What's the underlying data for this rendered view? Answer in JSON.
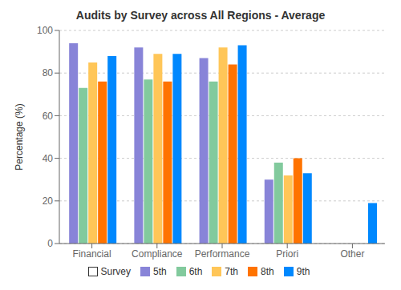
{
  "chart_data": {
    "type": "bar",
    "title": "Audits by Survey across All Regions - Average",
    "categories": [
      "Financial",
      "Compliance",
      "Performance",
      "Priori",
      "Other"
    ],
    "ylabel": "Percentage (%)",
    "ylim": [
      0,
      100
    ],
    "yticks": [
      0,
      20,
      40,
      60,
      80,
      100
    ],
    "grid": true,
    "legend": "bottom",
    "legend_title": "Survey",
    "series": [
      {
        "name": "5th",
        "color": "#8884d8",
        "values": [
          94,
          92,
          87,
          30,
          0
        ]
      },
      {
        "name": "6th",
        "color": "#82ca9d",
        "values": [
          73,
          77,
          76,
          38,
          0
        ]
      },
      {
        "name": "7th",
        "color": "#ffc658",
        "values": [
          85,
          89,
          92,
          32,
          0
        ]
      },
      {
        "name": "8th",
        "color": "#ff7300",
        "values": [
          76,
          76,
          84,
          40,
          0
        ]
      },
      {
        "name": "9th",
        "color": "#0088fe",
        "values": [
          88,
          89,
          93,
          33,
          19
        ]
      }
    ]
  }
}
